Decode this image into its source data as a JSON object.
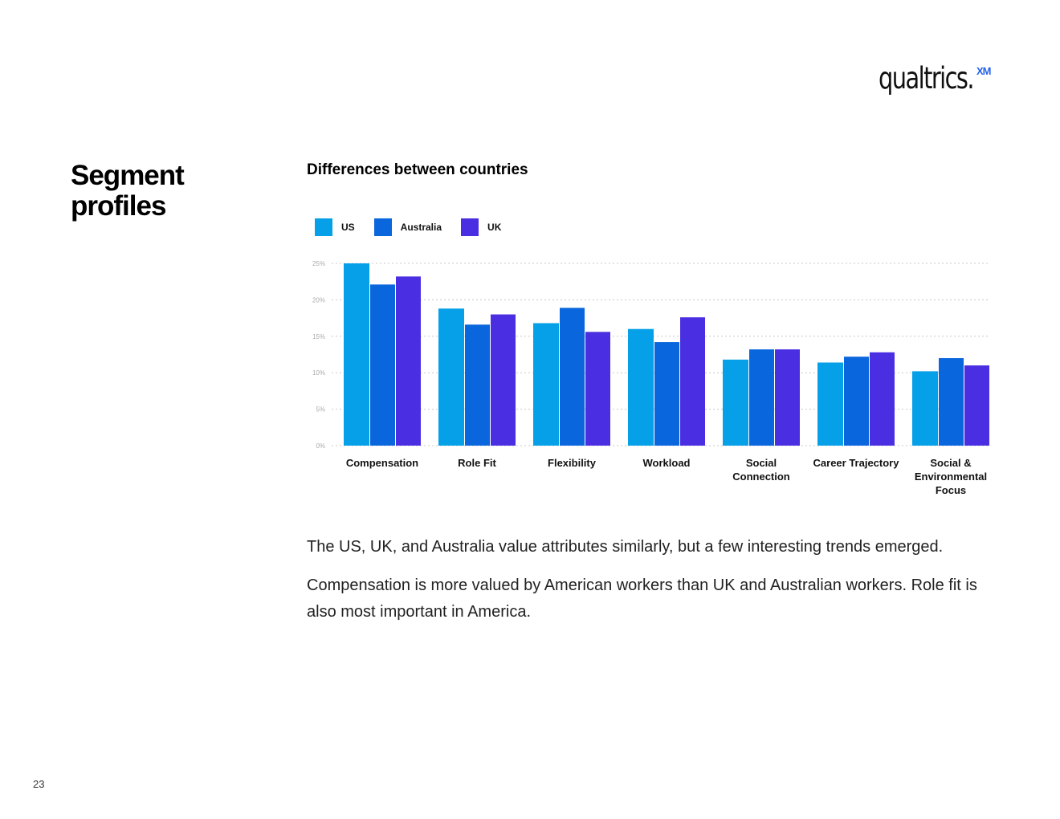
{
  "brand": {
    "wordmark": "qualtrics.",
    "superscript": "XM"
  },
  "section_title": "Segment profiles",
  "paragraphs": [
    "The US, UK, and Australia value attributes similarly, but a few interesting trends emerged.",
    "Compensation is more valued by American workers than UK and Australian workers. Role fit is also most important in America."
  ],
  "page_number": "23",
  "colors": {
    "us": "#06a0e8",
    "australia": "#0a66dc",
    "uk": "#4a2fe2",
    "grid": "#c8c8c8",
    "tick": "#aaaaaa"
  },
  "chart_data": {
    "type": "bar",
    "title": "Differences between countries",
    "xlabel": "",
    "ylabel": "",
    "ylim": [
      0,
      25
    ],
    "yticks": [
      "0%",
      "5%",
      "10%",
      "15%",
      "20%",
      "25%"
    ],
    "grid": true,
    "legend_position": "top-left",
    "categories": [
      "Compensation",
      "Role Fit",
      "Flexibility",
      "Workload",
      "Social Connection",
      "Career Trajectory",
      "Social & Environmental Focus"
    ],
    "series": [
      {
        "name": "US",
        "color": "#06a0e8",
        "values": [
          25.0,
          18.8,
          16.8,
          16.0,
          11.8,
          11.4,
          10.2
        ]
      },
      {
        "name": "Australia",
        "color": "#0a66dc",
        "values": [
          22.1,
          16.6,
          18.9,
          14.2,
          13.2,
          12.2,
          12.0
        ]
      },
      {
        "name": "UK",
        "color": "#4a2fe2",
        "values": [
          23.2,
          18.0,
          15.6,
          17.6,
          13.2,
          12.8,
          11.0
        ]
      }
    ]
  }
}
